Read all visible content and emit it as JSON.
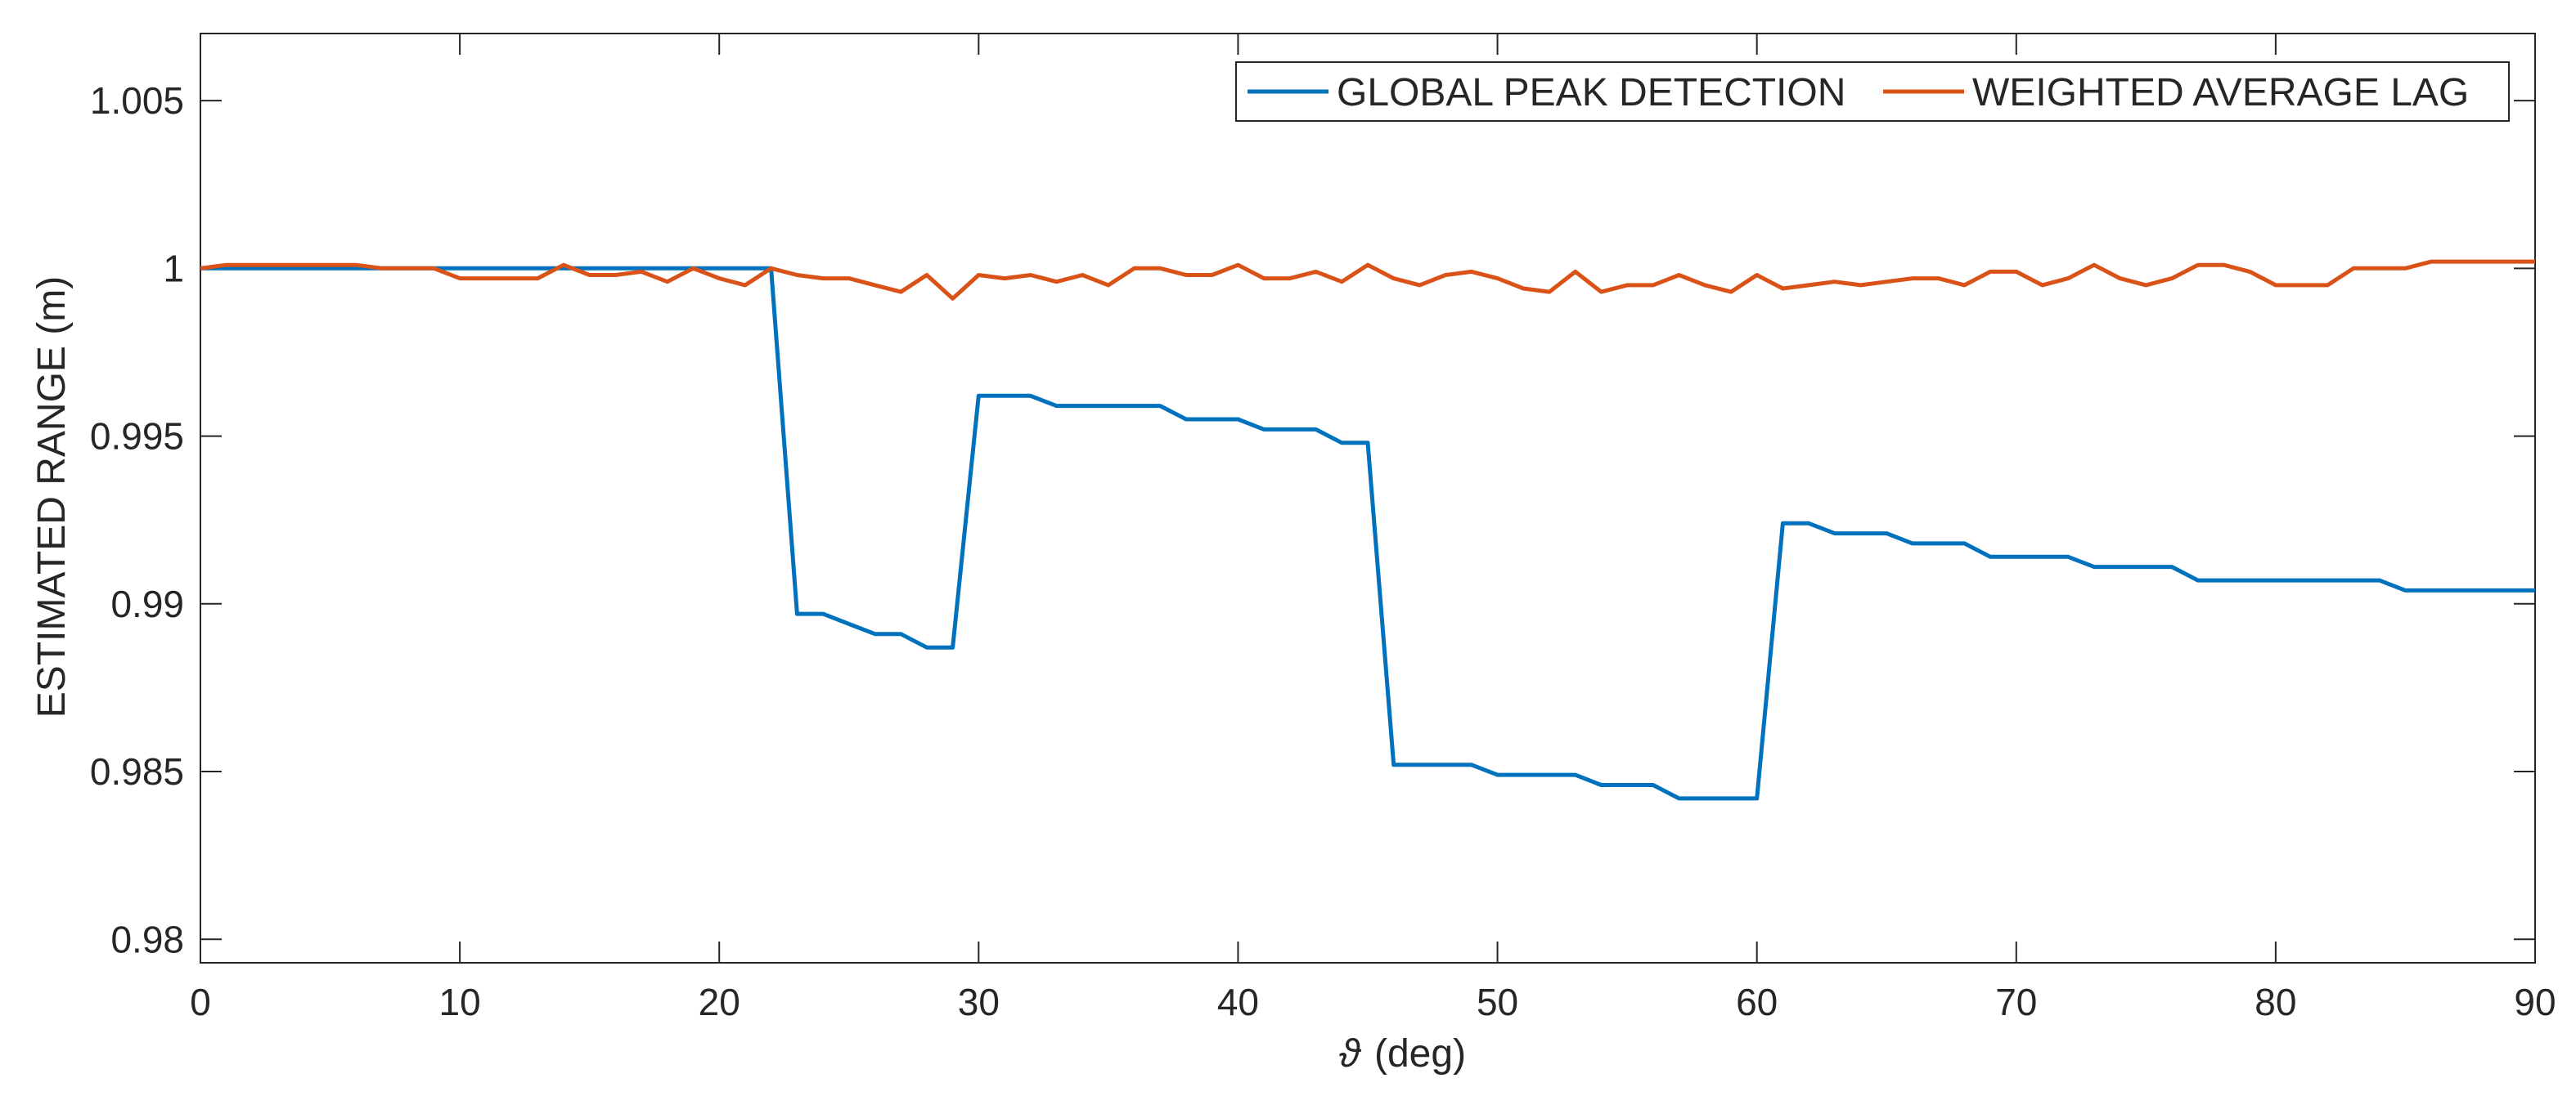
{
  "colors": {
    "global": "#0072BD",
    "weighted": "#D95319",
    "axis": "#262626",
    "background": "#ffffff"
  },
  "chart_data": {
    "type": "line",
    "xlabel_symbol": "ϑ",
    "xlabel": "(deg)",
    "ylabel": "ESTIMATED RANGE (m)",
    "xlim": [
      0,
      90
    ],
    "ylim": [
      0.9793,
      1.007
    ],
    "xticks": [
      0,
      10,
      20,
      30,
      40,
      50,
      60,
      70,
      80,
      90
    ],
    "xtick_labels": [
      "0",
      "10",
      "20",
      "30",
      "40",
      "50",
      "60",
      "70",
      "80",
      "90"
    ],
    "yticks": [
      0.98,
      0.985,
      0.99,
      0.995,
      1.0,
      1.005
    ],
    "ytick_labels": [
      "0.98",
      "0.985",
      "0.99",
      "0.995",
      "1",
      "1.005"
    ],
    "grid": false,
    "legend_placement": "top-right",
    "series": [
      {
        "name": "GLOBAL PEAK DETECTION",
        "color": "#0072BD",
        "x": [
          0,
          1,
          2,
          3,
          4,
          5,
          6,
          7,
          8,
          9,
          10,
          11,
          12,
          13,
          14,
          15,
          16,
          17,
          18,
          19,
          20,
          21,
          22,
          23,
          24,
          25,
          26,
          27,
          28,
          29,
          30,
          31,
          32,
          33,
          34,
          35,
          36,
          37,
          38,
          39,
          40,
          41,
          42,
          43,
          44,
          45,
          46,
          47,
          48,
          49,
          50,
          51,
          52,
          53,
          54,
          55,
          56,
          57,
          58,
          59,
          60,
          61,
          62,
          63,
          64,
          65,
          66,
          67,
          68,
          69,
          70,
          71,
          72,
          73,
          74,
          75,
          76,
          77,
          78,
          79,
          80,
          81,
          82,
          83,
          84,
          85,
          86,
          87,
          88,
          89,
          90
        ],
        "values": [
          1.0,
          1.0,
          1.0,
          1.0,
          1.0,
          1.0,
          1.0,
          1.0,
          1.0,
          1.0,
          1.0,
          1.0,
          1.0,
          1.0,
          1.0,
          1.0,
          1.0,
          1.0,
          1.0,
          1.0,
          1.0,
          1.0,
          1.0,
          0.9897,
          0.9897,
          0.9894,
          0.9891,
          0.9891,
          0.9887,
          0.9887,
          0.9962,
          0.9962,
          0.9962,
          0.9959,
          0.9959,
          0.9959,
          0.9959,
          0.9959,
          0.9955,
          0.9955,
          0.9955,
          0.9952,
          0.9952,
          0.9952,
          0.9948,
          0.9948,
          0.9852,
          0.9852,
          0.9852,
          0.9852,
          0.9849,
          0.9849,
          0.9849,
          0.9849,
          0.9846,
          0.9846,
          0.9846,
          0.9842,
          0.9842,
          0.9842,
          0.9842,
          0.9924,
          0.9924,
          0.9921,
          0.9921,
          0.9921,
          0.9918,
          0.9918,
          0.9918,
          0.9914,
          0.9914,
          0.9914,
          0.9914,
          0.9911,
          0.9911,
          0.9911,
          0.9911,
          0.9907,
          0.9907,
          0.9907,
          0.9907,
          0.9907,
          0.9907,
          0.9907,
          0.9907,
          0.9904,
          0.9904,
          0.9904,
          0.9904,
          0.9904,
          0.9904
        ]
      },
      {
        "name": "WEIGHTED AVERAGE LAG",
        "color": "#D95319",
        "x": [
          0,
          1,
          2,
          3,
          4,
          5,
          6,
          7,
          8,
          9,
          10,
          11,
          12,
          13,
          14,
          15,
          16,
          17,
          18,
          19,
          20,
          21,
          22,
          23,
          24,
          25,
          26,
          27,
          28,
          29,
          30,
          31,
          32,
          33,
          34,
          35,
          36,
          37,
          38,
          39,
          40,
          41,
          42,
          43,
          44,
          45,
          46,
          47,
          48,
          49,
          50,
          51,
          52,
          53,
          54,
          55,
          56,
          57,
          58,
          59,
          60,
          61,
          62,
          63,
          64,
          65,
          66,
          67,
          68,
          69,
          70,
          71,
          72,
          73,
          74,
          75,
          76,
          77,
          78,
          79,
          80,
          81,
          82,
          83,
          84,
          85,
          86,
          87,
          88,
          89,
          90
        ],
        "values": [
          1.0,
          1.0001,
          1.0001,
          1.0001,
          1.0001,
          1.0001,
          1.0001,
          1.0,
          1.0,
          1.0,
          0.9997,
          0.9997,
          0.9997,
          0.9997,
          1.0001,
          0.9998,
          0.9998,
          0.9999,
          0.9996,
          1.0,
          0.9997,
          0.9995,
          1.0,
          0.9998,
          0.9997,
          0.9997,
          0.9995,
          0.9993,
          0.9998,
          0.9991,
          0.9998,
          0.9997,
          0.9998,
          0.9996,
          0.9998,
          0.9995,
          1.0,
          1.0,
          0.9998,
          0.9998,
          1.0001,
          0.9997,
          0.9997,
          0.9999,
          0.9996,
          1.0001,
          0.9997,
          0.9995,
          0.9998,
          0.9999,
          0.9997,
          0.9994,
          0.9993,
          0.9999,
          0.9993,
          0.9995,
          0.9995,
          0.9998,
          0.9995,
          0.9993,
          0.9998,
          0.9994,
          0.9995,
          0.9996,
          0.9995,
          0.9996,
          0.9997,
          0.9997,
          0.9995,
          0.9999,
          0.9999,
          0.9995,
          0.9997,
          1.0001,
          0.9997,
          0.9995,
          0.9997,
          1.0001,
          1.0001,
          0.9999,
          0.9995,
          0.9995,
          0.9995,
          1.0,
          1.0,
          1.0,
          1.0002,
          1.0002,
          1.0002,
          1.0002,
          1.0002
        ]
      }
    ]
  }
}
